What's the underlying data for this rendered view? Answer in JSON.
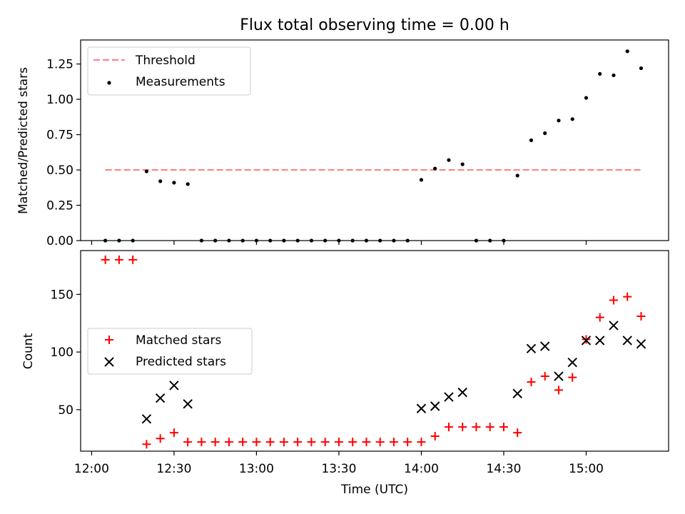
{
  "title": "Flux total observing time = 0.00 h",
  "colors": {
    "threshold": "#ff7f7f",
    "measurements": "#000000",
    "matched": "#ff0000",
    "predicted": "#000000"
  },
  "chart_data": [
    {
      "type": "scatter",
      "title": "Flux total observing time = 0.00 h",
      "xlabel": "",
      "ylabel": "Matched/Predicted stars",
      "xlim": [
        "11:56",
        "15:30"
      ],
      "ylim": [
        0,
        1.42
      ],
      "yticks": [
        "0.00",
        "0.25",
        "0.50",
        "0.75",
        "1.00",
        "1.25"
      ],
      "legend_position": "top-left",
      "threshold": {
        "name": "Threshold",
        "value": 0.5,
        "x_range": [
          "12:05",
          "15:20"
        ]
      },
      "series": [
        {
          "name": "Measurements",
          "x": [
            "12:05",
            "12:10",
            "12:15",
            "12:20",
            "12:25",
            "12:30",
            "12:35",
            "12:40",
            "12:45",
            "12:50",
            "12:55",
            "13:00",
            "13:05",
            "13:10",
            "13:15",
            "13:20",
            "13:25",
            "13:30",
            "13:35",
            "13:40",
            "13:45",
            "13:50",
            "13:55",
            "14:00",
            "14:05",
            "14:10",
            "14:15",
            "14:20",
            "14:25",
            "14:30",
            "14:35",
            "14:40",
            "14:45",
            "14:50",
            "14:55",
            "15:00",
            "15:05",
            "15:10",
            "15:15",
            "15:20"
          ],
          "y": [
            0,
            0,
            0,
            0.49,
            0.42,
            0.41,
            0.4,
            0,
            0,
            0,
            0,
            0,
            0,
            0,
            0,
            0,
            0,
            0,
            0,
            0,
            0,
            0,
            0,
            0.43,
            0.51,
            0.57,
            0.54,
            0,
            0,
            0,
            0.46,
            0.71,
            0.76,
            0.85,
            0.86,
            1.01,
            1.18,
            1.17,
            1.34,
            1.22
          ]
        }
      ]
    },
    {
      "type": "scatter",
      "title": "",
      "xlabel": "Time (UTC)",
      "ylabel": "Count",
      "xlim": [
        "11:56",
        "15:30"
      ],
      "ylim": [
        14,
        188
      ],
      "xticks": [
        "12:00",
        "12:30",
        "13:00",
        "13:30",
        "14:00",
        "14:30",
        "15:00"
      ],
      "yticks": [
        "50",
        "100",
        "150"
      ],
      "legend_position": "center-left",
      "series": [
        {
          "name": "Matched stars",
          "marker": "+",
          "x": [
            "12:05",
            "12:10",
            "12:15",
            "12:20",
            "12:25",
            "12:30",
            "12:35",
            "12:40",
            "12:45",
            "12:50",
            "12:55",
            "13:00",
            "13:05",
            "13:10",
            "13:15",
            "13:20",
            "13:25",
            "13:30",
            "13:35",
            "13:40",
            "13:45",
            "13:50",
            "13:55",
            "14:00",
            "14:05",
            "14:10",
            "14:15",
            "14:20",
            "14:25",
            "14:30",
            "14:35",
            "14:40",
            "14:45",
            "14:50",
            "14:55",
            "15:00",
            "15:05",
            "15:10",
            "15:15",
            "15:20"
          ],
          "y": [
            180,
            180,
            180,
            20,
            25,
            30,
            22,
            22,
            22,
            22,
            22,
            22,
            22,
            22,
            22,
            22,
            22,
            22,
            22,
            22,
            22,
            22,
            22,
            22,
            27,
            35,
            35,
            35,
            35,
            35,
            30,
            74,
            79,
            67,
            78,
            111,
            130,
            145,
            148,
            131
          ]
        },
        {
          "name": "Predicted stars",
          "marker": "x",
          "x": [
            "12:20",
            "12:25",
            "12:30",
            "12:35",
            "14:00",
            "14:05",
            "14:10",
            "14:15",
            "14:35",
            "14:40",
            "14:45",
            "14:50",
            "14:55",
            "15:00",
            "15:05",
            "15:10",
            "15:15",
            "15:20"
          ],
          "y": [
            42,
            60,
            71,
            55,
            51,
            53,
            61,
            65,
            64,
            103,
            105,
            79,
            91,
            110,
            110,
            123,
            110,
            107
          ]
        }
      ]
    }
  ]
}
